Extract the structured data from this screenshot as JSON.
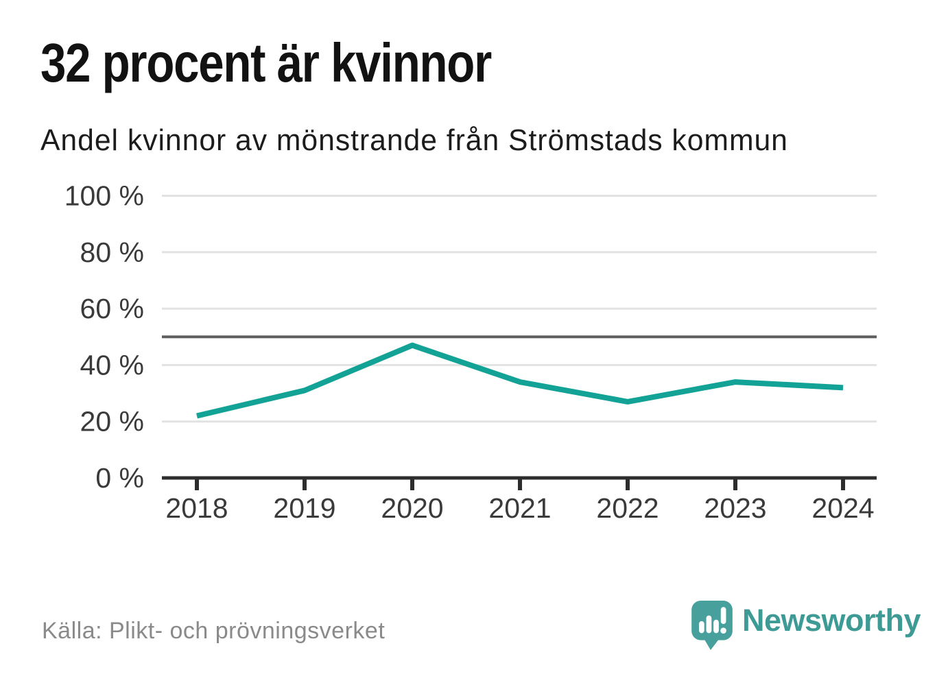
{
  "header": {
    "title": "32 procent är kvinnor",
    "subtitle": "Andel kvinnor av mönstrande från Strömstads kommun"
  },
  "chart_data": {
    "type": "line",
    "x": [
      "2018",
      "2019",
      "2020",
      "2021",
      "2022",
      "2023",
      "2024"
    ],
    "series": [
      {
        "name": "Andel kvinnor av mönstrande",
        "values": [
          22,
          31,
          47,
          34,
          27,
          34,
          32
        ]
      }
    ],
    "title": "32 procent är kvinnor",
    "subtitle": "Andel kvinnor av mönstrande från Strömstads kommun",
    "xlabel": "",
    "ylabel": "",
    "ylim": [
      0,
      100
    ],
    "yticks": [
      0,
      20,
      40,
      60,
      80,
      100
    ],
    "ytick_suffix": " %",
    "reference_line": 50,
    "grid": true,
    "legend_position": "none"
  },
  "footer": {
    "source": "Källa: Plikt- och prövningsverket",
    "brand": "Newsworthy"
  },
  "colors": {
    "line_teal": "#12a296",
    "logo_teal": "#47a09c",
    "wordmark_teal": "#3d9a94",
    "gridline": "#e2e2e2",
    "axis": "#2d2d2d",
    "reference_line": "#5e5e5e",
    "tick_label": "#3a3a3a",
    "title_text": "#121212",
    "muted_text": "#8a8a8a"
  }
}
